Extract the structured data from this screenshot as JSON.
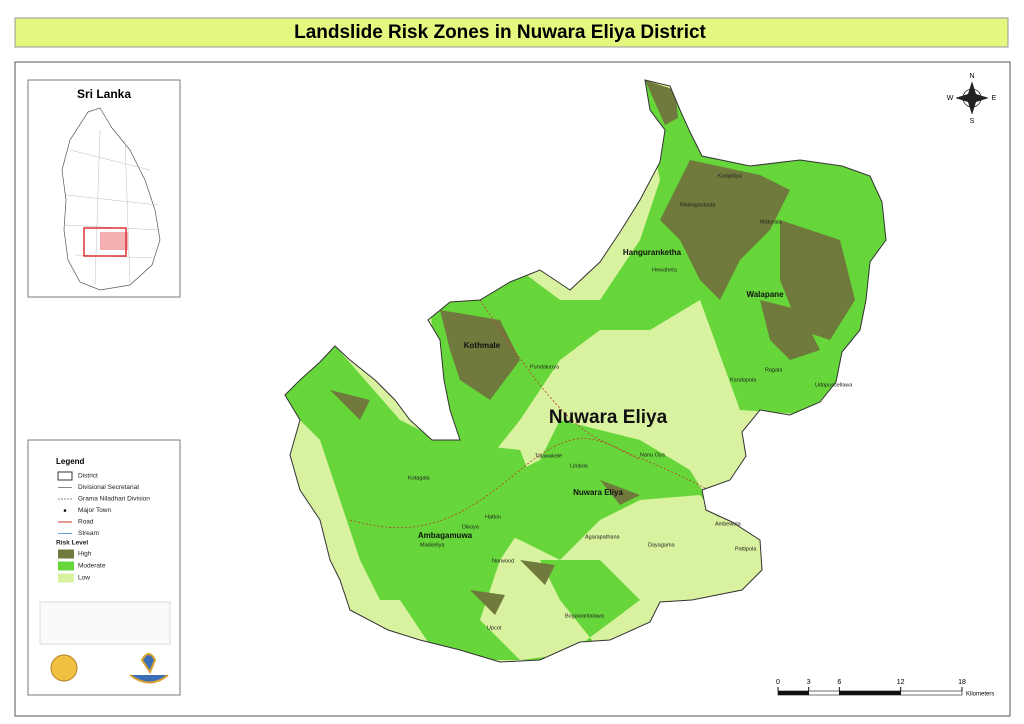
{
  "header": {
    "title": "Landslide Risk Zones in Nuwara Eliya District"
  },
  "inset": {
    "title": "Sri Lanka"
  },
  "map": {
    "district_label": "Nuwara Eliya",
    "divisions": [
      "Kothmale",
      "Hanguranketha",
      "Walapane",
      "Nuwara Eliya",
      "Ambagamuwa"
    ],
    "towns": [
      "Hewaheta",
      "Rikillagaskada",
      "Maturata",
      "Ragala",
      "Kandapola",
      "Udapussellawa",
      "Talawakele",
      "Lindula",
      "Hatton",
      "Dikoya",
      "Norwood",
      "Bogawantalawa",
      "Maskeliya",
      "Ambewela",
      "Pattipola",
      "Agarapathana",
      "Dayagama",
      "Upcot",
      "Nanu Oya",
      "Kotagala",
      "Pundaluoya",
      "Kalapitiya"
    ]
  },
  "legend": {
    "title": "Legend",
    "items": [
      "District",
      "Divisional Secretariat",
      "Grama Niladhari Division",
      "Major Town",
      "Road",
      "Stream"
    ],
    "risk_title": "Risk Level",
    "risk_levels": [
      {
        "label": "High",
        "color": "#6f7a3c"
      },
      {
        "label": "Moderate",
        "color": "#66d63a"
      },
      {
        "label": "Low",
        "color": "#d9f2a0"
      }
    ]
  },
  "compass": {
    "n": "N",
    "e": "E",
    "s": "S",
    "w": "W"
  },
  "scale": {
    "ticks": [
      0,
      3,
      6,
      12,
      18
    ],
    "unit": "Kilometers"
  }
}
